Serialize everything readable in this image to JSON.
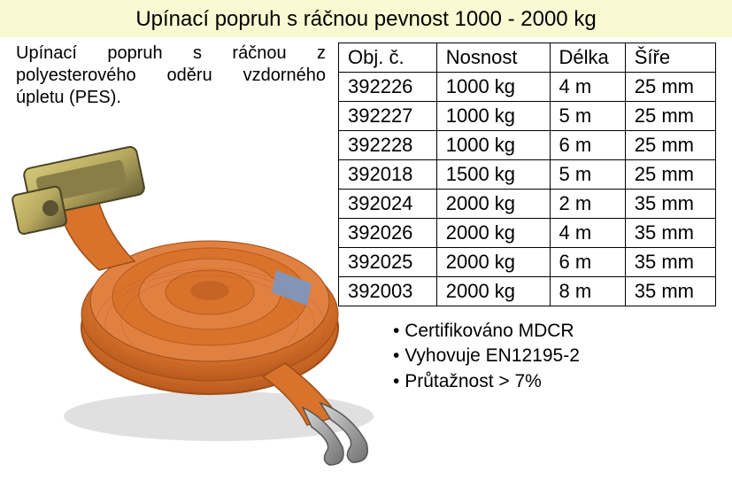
{
  "title": {
    "text": "Upínací popruh s ráčnou pevnost  1000 - 2000 kg",
    "background_color": "#fafad2",
    "font_size": 24
  },
  "description": "Upínací popruh s ráčnou z polyesterového oděru vzdorného úpletu (PES).",
  "table": {
    "columns": [
      "Obj. č.",
      "Nosnost",
      "Délka",
      "Šíře"
    ],
    "rows": [
      [
        "392226",
        "1000 kg",
        "4 m",
        "25 mm"
      ],
      [
        "392227",
        "1000 kg",
        "5 m",
        "25 mm"
      ],
      [
        "392228",
        "1000 kg",
        "6 m",
        "25 mm"
      ],
      [
        "392018",
        "1500 kg",
        "5 m",
        "25 mm"
      ],
      [
        "392024",
        "2000 kg",
        "2 m",
        "35 mm"
      ],
      [
        "392026",
        "2000 kg",
        "4 m",
        "35 mm"
      ],
      [
        "392025",
        "2000 kg",
        "6 m",
        "35 mm"
      ],
      [
        "392003",
        "2000 kg",
        "8 m",
        "35 mm"
      ]
    ],
    "border_color": "#000000",
    "font_size": 22,
    "col_widths_pct": [
      26,
      30,
      20,
      24
    ]
  },
  "bullets": [
    "Certifikováno MDCR",
    "Vyhovuje EN12195-2",
    "Průtažnost > 7%"
  ],
  "image": {
    "strap_color": "#d9732c",
    "strap_highlight": "#e89a5a",
    "metal_color": "#b8a960",
    "metal_shadow": "#6b6238",
    "hook_color": "#9c9c9c"
  },
  "colors": {
    "page_bg": "#ffffff",
    "text": "#000000"
  }
}
